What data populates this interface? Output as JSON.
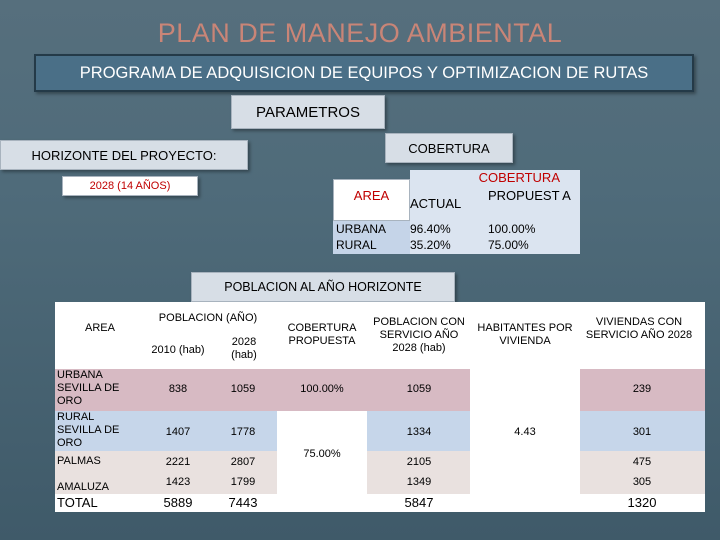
{
  "slide": {
    "title": "PLAN DE MANEJO AMBIENTAL",
    "banner": "PROGRAMA DE ADQUISICION DE EQUIPOS Y OPTIMIZACION DE RUTAS",
    "parametros": "PARAMETROS",
    "horizonte_label": "HORIZONTE DEL PROYECTO:",
    "horizonte_value": "2028 (14 AÑOS)",
    "cobertura_label": "COBERTURA",
    "poblacion_label": "POBLACION AL AÑO HORIZONTE"
  },
  "cobertura_table": {
    "area_header": "AREA",
    "group_header": "COBERTURA",
    "actual_header": "ACTUAL",
    "propuesta_header": "PROPUEST A",
    "rows": [
      {
        "area": "URBANA",
        "actual": "96.40%",
        "propuesta": "100.00%"
      },
      {
        "area": "RURAL",
        "actual": "35.20%",
        "propuesta": "75.00%"
      }
    ]
  },
  "poblacion_table": {
    "headers": {
      "area": "AREA",
      "poblacion": "POBLACION (AÑO)",
      "y2010": "2010 (hab)",
      "y2028": "2028 (hab)",
      "cobertura": "COBERTURA PROPUESTA",
      "servicio": "POBLACION CON SERVICIO AÑO 2028 (hab)",
      "habitantes": "HABITANTES POR VIVIENDA",
      "viviendas": "VIVIENDAS CON SERVICIO AÑO 2028"
    },
    "rows": [
      {
        "area": "URBANA SEVILLA DE ORO",
        "y2010": "838",
        "y2028": "1059",
        "servicio": "1059",
        "viviendas": "239"
      },
      {
        "area": "RURAL SEVILLA DE ORO",
        "y2010": "1407",
        "y2028": "1778",
        "servicio": "1334",
        "viviendas": "301"
      },
      {
        "area": "PALMAS",
        "y2010": "2221",
        "y2028": "2807",
        "servicio": "2105",
        "viviendas": "475"
      },
      {
        "area": "AMALUZA",
        "y2010": "1423",
        "y2028": "1799",
        "servicio": "1349",
        "viviendas": "305"
      }
    ],
    "cobertura_urbana": "100.00%",
    "cobertura_rural": "75.00%",
    "habitantes_vivienda": "4.43",
    "total": {
      "label": "TOTAL",
      "y2010": "5889",
      "y2028": "7443",
      "servicio": "5847",
      "viviendas": "1320"
    }
  }
}
